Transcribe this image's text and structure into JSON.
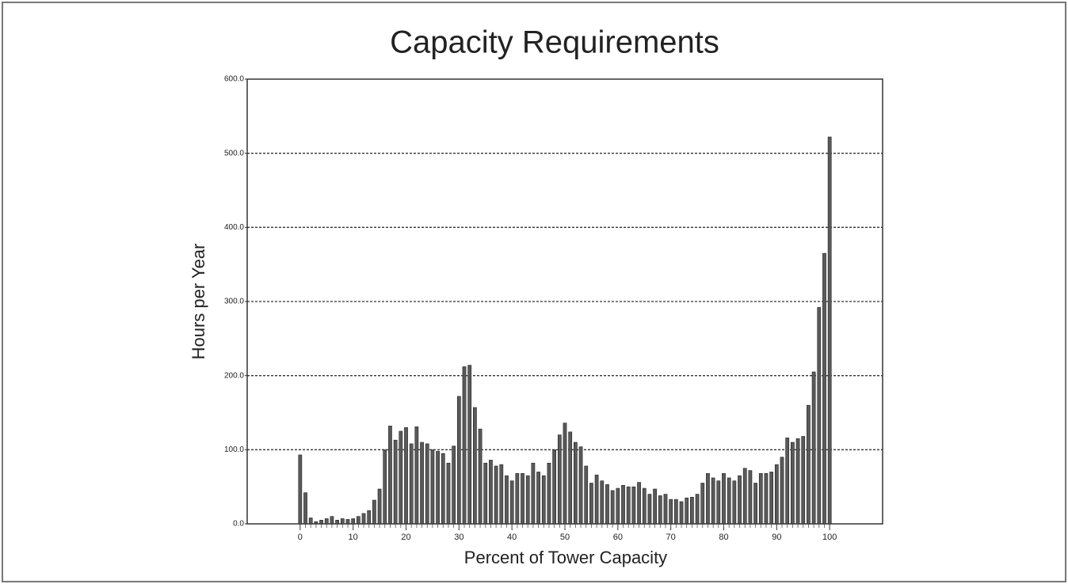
{
  "chart_data": {
    "type": "bar",
    "title": "Capacity Requirements",
    "x_label": "Percent of Tower Capacity",
    "y_label": "Hours per Year",
    "x": [
      0,
      1,
      2,
      3,
      4,
      5,
      6,
      7,
      8,
      9,
      10,
      11,
      12,
      13,
      14,
      15,
      16,
      17,
      18,
      19,
      20,
      21,
      22,
      23,
      24,
      25,
      26,
      27,
      28,
      29,
      30,
      31,
      32,
      33,
      34,
      35,
      36,
      37,
      38,
      39,
      40,
      41,
      42,
      43,
      44,
      45,
      46,
      47,
      48,
      49,
      50,
      51,
      52,
      53,
      54,
      55,
      56,
      57,
      58,
      59,
      60,
      61,
      62,
      63,
      64,
      65,
      66,
      67,
      68,
      69,
      70,
      71,
      72,
      73,
      74,
      75,
      76,
      77,
      78,
      79,
      80,
      81,
      82,
      83,
      84,
      85,
      86,
      87,
      88,
      89,
      90,
      91,
      92,
      93,
      94,
      95,
      96,
      97,
      98,
      99,
      100
    ],
    "values": [
      93,
      42,
      8,
      3,
      5,
      7,
      10,
      5,
      7,
      6,
      7,
      10,
      14,
      18,
      32,
      47,
      100,
      132,
      113,
      125,
      130,
      108,
      131,
      110,
      108,
      100,
      98,
      95,
      82,
      105,
      172,
      212,
      214,
      157,
      128,
      82,
      86,
      78,
      80,
      65,
      58,
      68,
      68,
      65,
      82,
      70,
      65,
      82,
      100,
      120,
      136,
      124,
      110,
      104,
      78,
      55,
      66,
      58,
      53,
      45,
      48,
      52,
      50,
      50,
      56,
      48,
      40,
      47,
      38,
      40,
      33,
      33,
      30,
      35,
      36,
      40,
      55,
      68,
      62,
      58,
      68,
      62,
      58,
      65,
      75,
      72,
      55,
      68,
      68,
      70,
      80,
      90,
      116,
      110,
      115,
      118,
      160,
      205,
      292,
      365,
      522
    ],
    "color": "#5a5a5a",
    "xlim": [
      -10,
      110
    ],
    "xticks": [
      0,
      10,
      20,
      30,
      40,
      50,
      60,
      70,
      80,
      90,
      100
    ],
    "ylim": [
      0,
      600
    ],
    "yticks": [
      {
        "value": 0,
        "label": "0.0"
      },
      {
        "value": 100,
        "label": "100.0"
      },
      {
        "value": 200,
        "label": "200.0"
      },
      {
        "value": 300,
        "label": "300.0"
      },
      {
        "value": 400,
        "label": "400.0"
      },
      {
        "value": 500,
        "label": "500.0"
      },
      {
        "value": 600,
        "label": "600.0"
      }
    ],
    "grid": true
  }
}
